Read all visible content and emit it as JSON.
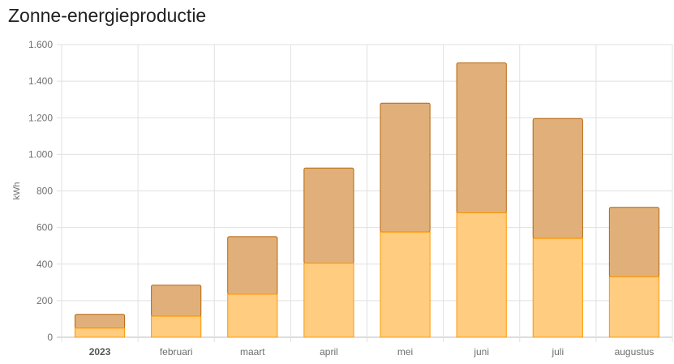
{
  "card": {
    "title": "Zonne-energieproductie"
  },
  "colors": {
    "lower_fill": "#ffcc80",
    "lower_stroke": "#ff9800",
    "upper_fill": "#e1b07a",
    "upper_stroke": "#b7650a",
    "grid": "#e0e0e0",
    "axis": "#bdbdbd"
  },
  "chart_data": {
    "type": "bar",
    "stacked": true,
    "ylabel": "kWh",
    "ylim": [
      0,
      1600
    ],
    "yticks": [
      0,
      200,
      400,
      600,
      800,
      1000,
      1200,
      1400,
      1600
    ],
    "ytick_labels": [
      "0",
      "200",
      "400",
      "600",
      "800",
      "1.000",
      "1.200",
      "1.400",
      "1.600"
    ],
    "categories": [
      "2023",
      "februari",
      "maart",
      "april",
      "mei",
      "juni",
      "juli",
      "augustus"
    ],
    "bold_categories": [
      "2023"
    ],
    "series": [
      {
        "values": [
          50,
          115,
          235,
          405,
          575,
          680,
          540,
          330
        ]
      },
      {
        "values": [
          75,
          170,
          315,
          520,
          705,
          820,
          655,
          380
        ]
      }
    ],
    "grid": true,
    "legend": "none"
  }
}
